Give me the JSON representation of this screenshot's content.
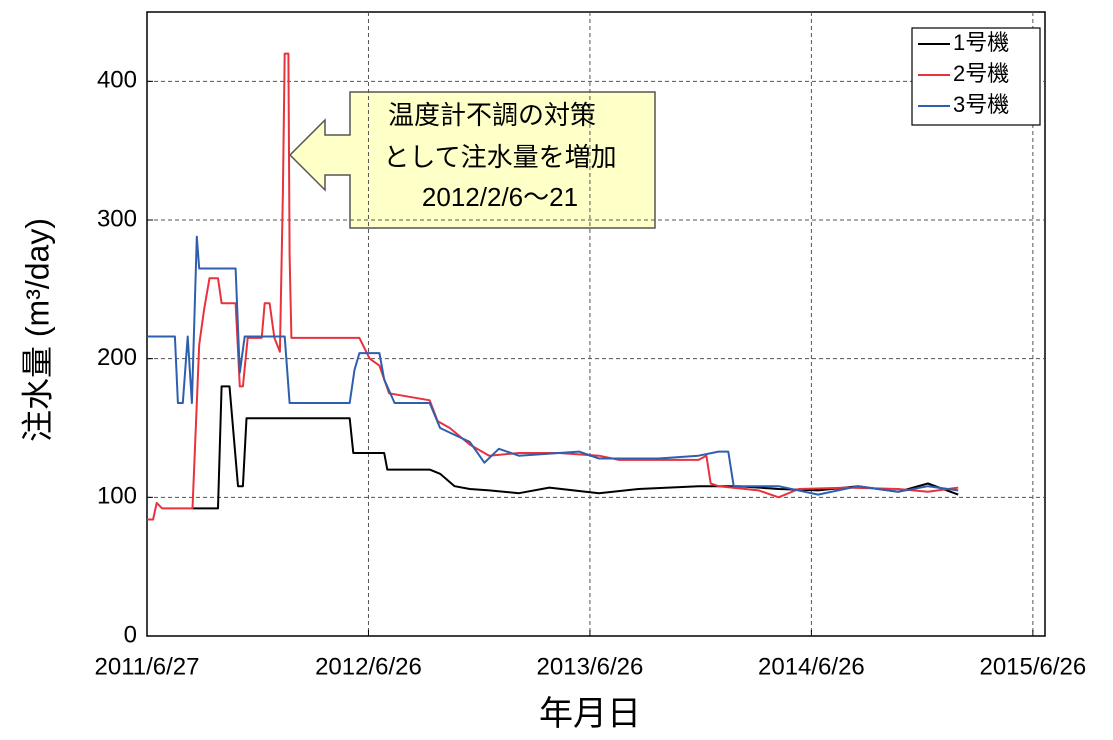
{
  "chart_data": {
    "type": "line",
    "xlabel": "年月日",
    "ylabel": "注水量 (m³/day)",
    "annotation": [
      "温度計不調の対策",
      "として注水量を増加",
      "2012/2/6～21"
    ],
    "xlim": [
      "2011/6/27",
      "2015/7/16"
    ],
    "xticks": [
      "2011/6/27",
      "2012/6/26",
      "2013/6/26",
      "2014/6/26",
      "2015/6/26"
    ],
    "ylim": [
      0,
      450
    ],
    "yticks": [
      0,
      100,
      200,
      300,
      400
    ],
    "grid": true,
    "legend": "upper right",
    "series": [
      {
        "name": "1号機",
        "color": "#000000",
        "x": [
          "2011/9/10",
          "2011/10/22",
          "2011/10/28",
          "2011/11/10",
          "2011/11/24",
          "2011/12/2",
          "2011/12/8",
          "2012/5/26",
          "2012/6/1",
          "2012/7/22",
          "2012/7/27",
          "2012/10/5",
          "2012/10/22",
          "2012/11/15",
          "2012/12/10",
          "2013/1/11",
          "2013/3/1",
          "2013/4/20",
          "2013/7/11",
          "2013/9/14",
          "2013/12/22",
          "2014/2/26",
          "2014/5/3",
          "2014/7/7",
          "2014/9/11",
          "2014/11/16",
          "2015/1/4",
          "2015/2/23"
        ],
        "values": [
          92,
          92,
          180,
          180,
          108,
          108,
          157,
          157,
          132,
          132,
          120,
          120,
          117,
          108,
          106,
          105,
          103,
          107,
          103,
          106,
          108,
          108,
          106,
          105,
          108,
          104,
          110,
          102
        ]
      },
      {
        "name": "2号機",
        "color": "#e8323c",
        "x": [
          "2011/6/27",
          "2011/7/7",
          "2011/7/13",
          "2011/7/22",
          "2011/9/10",
          "2011/9/21",
          "2011/9/29",
          "2011/10/8",
          "2011/10/22",
          "2011/10/28",
          "2011/11/20",
          "2011/11/27",
          "2011/12/2",
          "2011/12/10",
          "2012/1/2",
          "2012/1/7",
          "2012/1/15",
          "2012/1/23",
          "2012/2/1",
          "2012/2/6",
          "2012/2/9",
          "2012/2/15",
          "2012/2/17",
          "2012/2/20",
          "2012/6/11",
          "2012/6/28",
          "2012/7/14",
          "2012/7/30",
          "2012/10/5",
          "2012/10/18",
          "2012/11/7",
          "2012/12/10",
          "2013/1/11",
          "2013/3/1",
          "2013/5/6",
          "2013/7/11",
          "2013/8/13",
          "2013/12/22",
          "2014/1/4",
          "2014/1/11",
          "2014/1/24",
          "2014/3/31",
          "2014/5/3",
          "2014/6/5",
          "2014/8/26",
          "2014/11/16",
          "2015/1/4",
          "2015/2/23"
        ],
        "values": [
          84,
          84,
          96,
          92,
          92,
          210,
          235,
          258,
          258,
          240,
          240,
          180,
          180,
          215,
          215,
          240,
          240,
          215,
          205,
          320,
          420,
          420,
          275,
          215,
          215,
          200,
          195,
          175,
          170,
          155,
          150,
          138,
          130,
          132,
          132,
          130,
          127,
          127,
          130,
          110,
          108,
          105,
          100,
          106,
          107,
          106,
          104,
          107
        ]
      },
      {
        "name": "3号機",
        "color": "#2e5fae",
        "x": [
          "2011/6/27",
          "2011/8/12",
          "2011/8/17",
          "2011/8/25",
          "2011/9/2",
          "2011/9/9",
          "2011/9/17",
          "2011/9/21",
          "2011/11/20",
          "2011/11/27",
          "2011/12/5",
          "2012/2/9",
          "2012/2/17",
          "2012/5/26",
          "2012/6/3",
          "2012/6/11",
          "2012/7/14",
          "2012/7/22",
          "2012/8/8",
          "2012/10/5",
          "2012/10/22",
          "2012/11/15",
          "2012/12/10",
          "2013/1/3",
          "2013/1/27",
          "2013/3/1",
          "2013/6/8",
          "2013/7/11",
          "2013/10/17",
          "2013/12/22",
          "2014/1/24",
          "2014/2/9",
          "2014/2/18",
          "2014/5/3",
          "2014/7/7",
          "2014/9/11",
          "2014/11/16",
          "2015/1/4",
          "2015/2/23"
        ],
        "values": [
          216,
          216,
          168,
          168,
          216,
          168,
          288,
          265,
          265,
          190,
          216,
          216,
          168,
          168,
          192,
          204,
          204,
          185,
          168,
          168,
          150,
          145,
          140,
          125,
          135,
          130,
          133,
          128,
          128,
          130,
          133,
          133,
          108,
          108,
          102,
          108,
          104,
          108,
          105
        ]
      }
    ]
  }
}
